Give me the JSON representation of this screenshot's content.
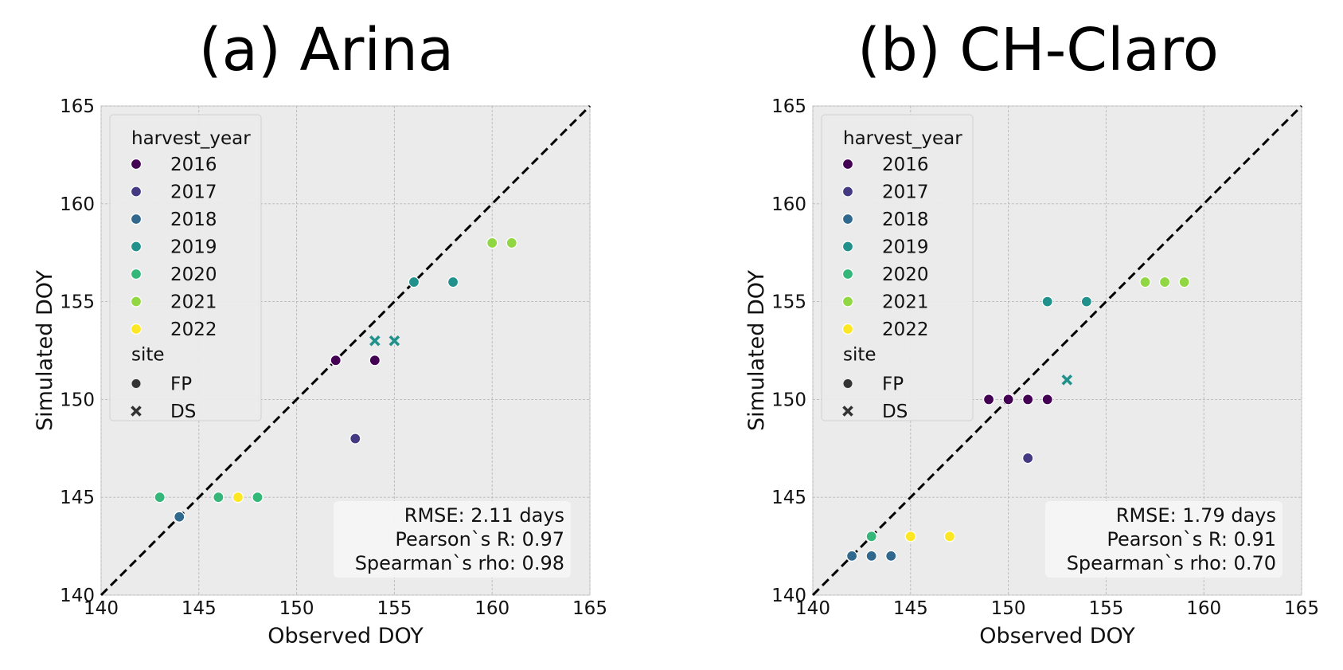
{
  "chart_data": [
    {
      "type": "scatter",
      "title": "(a) Arina",
      "xlabel": "Observed DOY",
      "ylabel": "Simulated DOY",
      "xlim": [
        140,
        165
      ],
      "ylim": [
        140,
        165
      ],
      "xticks": [
        "140",
        "145",
        "150",
        "155",
        "160",
        "165"
      ],
      "yticks": [
        "140",
        "145",
        "150",
        "155",
        "160",
        "165"
      ],
      "grid": true,
      "reference_line": "y = x (dashed)",
      "legend_position": "upper-left",
      "stats": [
        "RMSE: 2.11 days",
        "Pearson`s R: 0.97",
        "Spearman`s rho: 0.98"
      ],
      "points": [
        {
          "x": 143,
          "y": 145,
          "year": "2020",
          "site": "FP"
        },
        {
          "x": 144,
          "y": 144,
          "year": "2018",
          "site": "FP"
        },
        {
          "x": 146,
          "y": 145,
          "year": "2020",
          "site": "FP"
        },
        {
          "x": 147,
          "y": 145,
          "year": "2022",
          "site": "FP"
        },
        {
          "x": 148,
          "y": 145,
          "year": "2020",
          "site": "FP"
        },
        {
          "x": 152,
          "y": 152,
          "year": "2016",
          "site": "FP"
        },
        {
          "x": 153,
          "y": 148,
          "year": "2017",
          "site": "FP"
        },
        {
          "x": 154,
          "y": 152,
          "year": "2016",
          "site": "FP"
        },
        {
          "x": 154,
          "y": 153,
          "year": "2019",
          "site": "DS"
        },
        {
          "x": 155,
          "y": 153,
          "year": "2019",
          "site": "DS"
        },
        {
          "x": 156,
          "y": 156,
          "year": "2019",
          "site": "FP"
        },
        {
          "x": 158,
          "y": 156,
          "year": "2019",
          "site": "FP"
        },
        {
          "x": 160,
          "y": 158,
          "year": "2021",
          "site": "FP"
        },
        {
          "x": 161,
          "y": 158,
          "year": "2021",
          "site": "FP"
        }
      ]
    },
    {
      "type": "scatter",
      "title": "(b) CH-Claro",
      "xlabel": "Observed DOY",
      "ylabel": "Simulated DOY",
      "xlim": [
        140,
        165
      ],
      "ylim": [
        140,
        165
      ],
      "xticks": [
        "140",
        "145",
        "150",
        "155",
        "160",
        "165"
      ],
      "yticks": [
        "140",
        "145",
        "150",
        "155",
        "160",
        "165"
      ],
      "grid": true,
      "reference_line": "y = x (dashed)",
      "legend_position": "upper-left",
      "stats": [
        "RMSE: 1.79 days",
        "Pearson`s R: 0.91",
        "Spearman`s rho: 0.70"
      ],
      "points": [
        {
          "x": 142,
          "y": 142,
          "year": "2018",
          "site": "FP"
        },
        {
          "x": 143,
          "y": 142,
          "year": "2018",
          "site": "FP"
        },
        {
          "x": 144,
          "y": 142,
          "year": "2018",
          "site": "FP"
        },
        {
          "x": 143,
          "y": 143,
          "year": "2020",
          "site": "FP"
        },
        {
          "x": 145,
          "y": 143,
          "year": "2022",
          "site": "FP"
        },
        {
          "x": 147,
          "y": 143,
          "year": "2022",
          "site": "FP"
        },
        {
          "x": 149,
          "y": 150,
          "year": "2016",
          "site": "FP"
        },
        {
          "x": 150,
          "y": 150,
          "year": "2016",
          "site": "FP"
        },
        {
          "x": 151,
          "y": 150,
          "year": "2016",
          "site": "FP"
        },
        {
          "x": 152,
          "y": 150,
          "year": "2016",
          "site": "FP"
        },
        {
          "x": 151,
          "y": 147,
          "year": "2017",
          "site": "FP"
        },
        {
          "x": 152,
          "y": 155,
          "year": "2019",
          "site": "FP"
        },
        {
          "x": 154,
          "y": 155,
          "year": "2019",
          "site": "FP"
        },
        {
          "x": 153,
          "y": 151,
          "year": "2019",
          "site": "DS"
        },
        {
          "x": 157,
          "y": 156,
          "year": "2021",
          "site": "FP"
        },
        {
          "x": 158,
          "y": 156,
          "year": "2021",
          "site": "FP"
        },
        {
          "x": 159,
          "y": 156,
          "year": "2021",
          "site": "FP"
        }
      ]
    }
  ],
  "legend": {
    "year_title": "harvest_year",
    "years": [
      {
        "label": "2016",
        "color": "#440154"
      },
      {
        "label": "2017",
        "color": "#443983"
      },
      {
        "label": "2018",
        "color": "#31688e"
      },
      {
        "label": "2019",
        "color": "#21918c"
      },
      {
        "label": "2020",
        "color": "#35b779"
      },
      {
        "label": "2021",
        "color": "#90d743"
      },
      {
        "label": "2022",
        "color": "#fde725"
      }
    ],
    "site_title": "site",
    "sites": [
      {
        "label": "FP",
        "marker": "circle"
      },
      {
        "label": "DS",
        "marker": "x"
      }
    ]
  },
  "colors": {
    "plot_background": "#ebebeb",
    "grid": "#b9b9b9",
    "reference_line": "#000000"
  }
}
